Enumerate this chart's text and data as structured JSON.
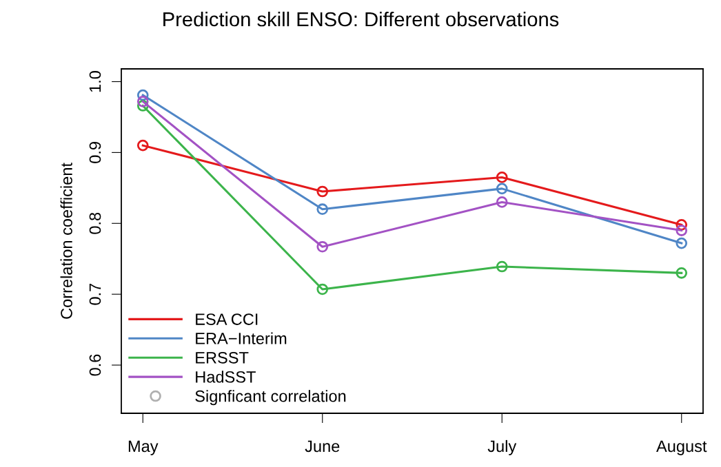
{
  "chart_data": {
    "type": "line",
    "title": "Prediction skill ENSO: Different observations",
    "ylabel": "Correlation coefficient",
    "categories": [
      "May",
      "June",
      "July",
      "August"
    ],
    "series": [
      {
        "name": "ESA CCI",
        "color": "#e41a1c",
        "values": [
          0.91,
          0.845,
          0.865,
          0.798
        ]
      },
      {
        "name": "ERA−Interim",
        "color": "#4f86c6",
        "values": [
          0.981,
          0.82,
          0.849,
          0.772
        ]
      },
      {
        "name": "ERSST",
        "color": "#3cb44b",
        "values": [
          0.966,
          0.707,
          0.739,
          0.73
        ]
      },
      {
        "name": "HadSST",
        "color": "#a352c4",
        "values": [
          0.972,
          0.767,
          0.83,
          0.79
        ]
      },
      {
        "name": "Signficant correlation",
        "type": "scatter",
        "color": "#b0b0b0",
        "values": [
          null,
          null,
          null,
          null
        ]
      }
    ],
    "marker": "circle",
    "line_style": "solid",
    "ylim": [
      0.532,
      1.018
    ],
    "yticks": [
      {
        "value": 0.6,
        "label": "0.6"
      },
      {
        "value": 0.7,
        "label": "0.7"
      },
      {
        "value": 0.8,
        "label": "0.8"
      },
      {
        "value": 0.9,
        "label": "0.9"
      },
      {
        "value": 1.0,
        "label": "1.0"
      }
    ],
    "grid": false,
    "legend": "bottom left"
  }
}
